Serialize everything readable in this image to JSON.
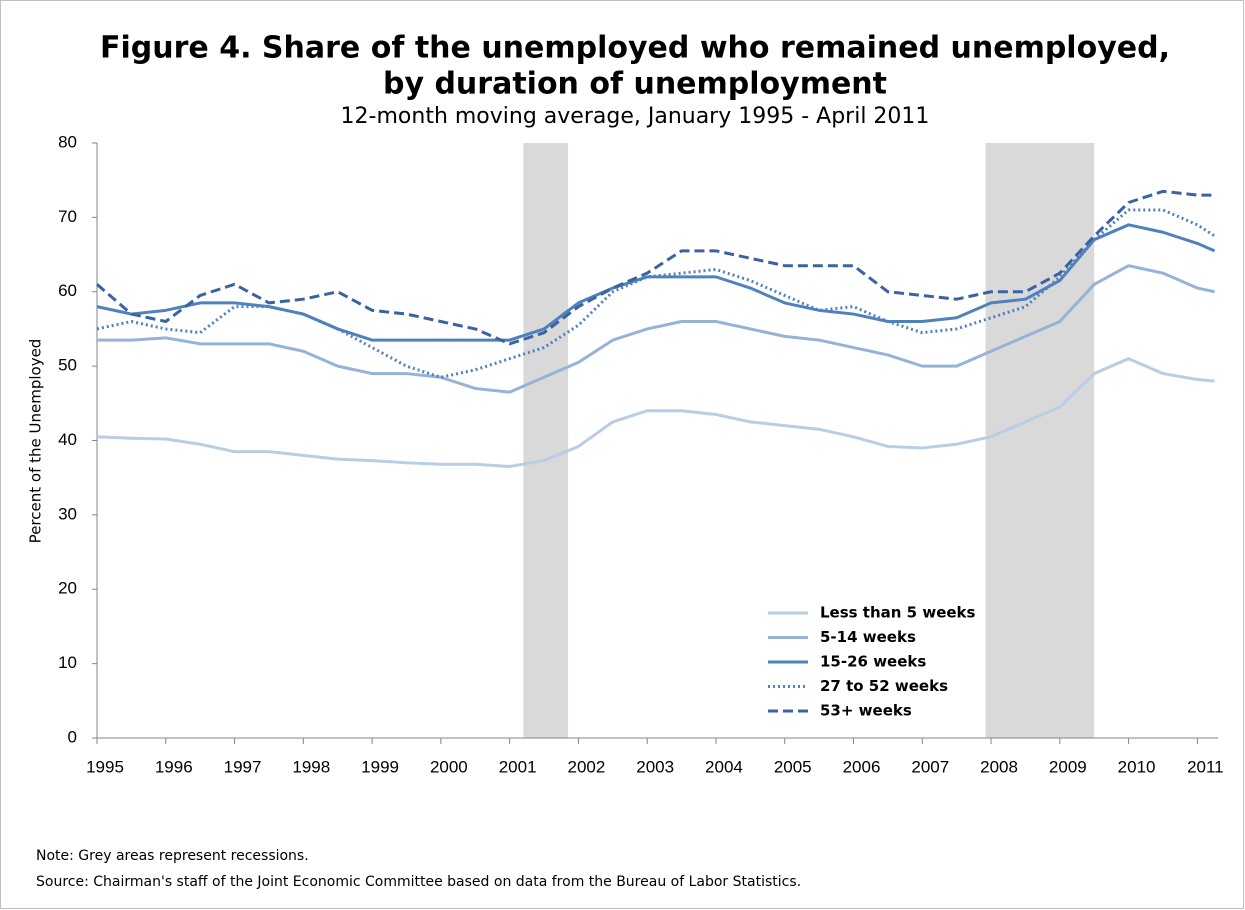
{
  "chart_data": {
    "type": "line",
    "title": "Figure 4. Share of the unemployed who remained unemployed,",
    "title_line2": "by duration of unemployment",
    "subtitle": "12-month moving average, January 1995 - April 2011",
    "y_label": "Percent of the Unemployed",
    "note": "Note: Grey areas represent recessions.",
    "source": "Source: Chairman's staff of the Joint Economic Committee based on data from the Bureau of Labor Statistics.",
    "xlim": [
      1995,
      2011.3
    ],
    "xticks": [
      1995,
      1996,
      1997,
      1998,
      1999,
      2000,
      2001,
      2002,
      2003,
      2004,
      2005,
      2006,
      2007,
      2008,
      2009,
      2010,
      2011
    ],
    "ylim": [
      0,
      80
    ],
    "yticks": [
      0,
      10,
      20,
      30,
      40,
      50,
      60,
      70,
      80
    ],
    "grid": false,
    "legend": "lower right",
    "recessions": [
      [
        2001.2,
        2001.85
      ],
      [
        2007.92,
        2009.5
      ]
    ],
    "recession_color": "#d9d9d9",
    "x": [
      1995,
      1995.5,
      1996,
      1996.5,
      1997,
      1997.5,
      1998,
      1998.5,
      1999,
      1999.5,
      2000,
      2000.5,
      2001,
      2001.5,
      2002,
      2002.5,
      2003,
      2003.5,
      2004,
      2004.5,
      2005,
      2005.5,
      2006,
      2006.5,
      2007,
      2007.5,
      2008,
      2008.5,
      2009,
      2009.5,
      2010,
      2010.5,
      2011,
      2011.25
    ],
    "series": [
      {
        "name": "Less than 5 weeks",
        "color": "#b9cde5",
        "dash": "solid",
        "values": [
          40.5,
          40.3,
          40.2,
          39.5,
          38.5,
          38.5,
          38,
          37.5,
          37.3,
          37,
          36.8,
          36.8,
          36.5,
          37.3,
          39.2,
          42.5,
          44,
          44,
          43.5,
          42.5,
          42,
          41.5,
          40.5,
          39.2,
          39,
          39.5,
          40.5,
          42.5,
          44.5,
          49,
          51,
          49,
          48.2,
          48
        ]
      },
      {
        "name": "5-14 weeks",
        "color": "#95b3d7",
        "dash": "solid",
        "values": [
          53.5,
          53.5,
          53.8,
          53,
          53,
          53,
          52,
          50,
          49,
          49,
          48.5,
          47,
          46.5,
          48.5,
          50.5,
          53.5,
          55,
          56,
          56,
          55,
          54,
          53.5,
          52.5,
          51.5,
          50,
          50,
          52,
          54,
          56,
          61,
          63.5,
          62.5,
          60.5,
          60
        ]
      },
      {
        "name": "15-26 weeks",
        "color": "#4f81bd",
        "dash": "solid",
        "values": [
          58,
          57,
          57.5,
          58.5,
          58.5,
          58,
          57,
          55,
          53.5,
          53.5,
          53.5,
          53.5,
          53.5,
          55,
          58.5,
          60.5,
          62,
          62,
          62,
          60.5,
          58.5,
          57.5,
          57,
          56,
          56,
          56.5,
          58.5,
          59,
          61.5,
          67,
          69,
          68,
          66.5,
          65.5
        ]
      },
      {
        "name": "27 to 52 weeks",
        "color": "#4f81bd",
        "dash": "dotted",
        "values": [
          55,
          56,
          55,
          54.5,
          58,
          58,
          57,
          55,
          52.5,
          50,
          48.5,
          49.5,
          51,
          52.5,
          55.5,
          60,
          62,
          62.5,
          63,
          61.5,
          59.5,
          57.5,
          58,
          56,
          54.5,
          55,
          56.5,
          58,
          62,
          67,
          71,
          71,
          69,
          67.5
        ]
      },
      {
        "name": "53+ weeks",
        "color": "#3a64a0",
        "dash": "dashed",
        "values": [
          61,
          57,
          56,
          59.5,
          61,
          58.5,
          59,
          60,
          57.5,
          57,
          56,
          55,
          53,
          54.5,
          58,
          60.5,
          62.5,
          65.5,
          65.5,
          64.5,
          63.5,
          63.5,
          63.5,
          60,
          59.5,
          59,
          60,
          60,
          62.5,
          67.5,
          72,
          73.5,
          73,
          73
        ]
      }
    ]
  }
}
